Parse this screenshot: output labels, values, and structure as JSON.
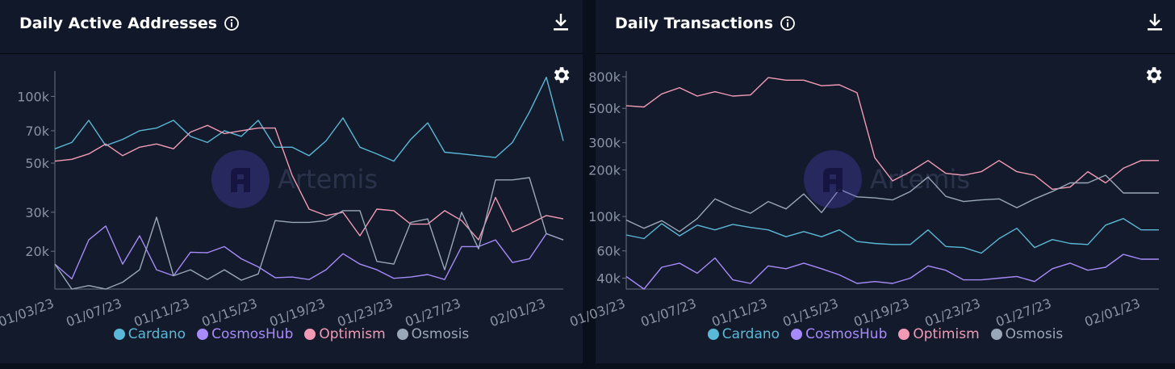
{
  "watermark": "Artemis",
  "colors": {
    "Cardano": "#5bb8d6",
    "CosmosHub": "#a78bfa",
    "Optimism": "#f39bb5",
    "Osmosis": "#9aa7b8"
  },
  "panels": [
    {
      "title": "Daily Active Addresses",
      "icons": [
        "info-icon",
        "download-icon",
        "gear-icon"
      ]
    },
    {
      "title": "Daily Transactions",
      "icons": [
        "info-icon",
        "download-icon",
        "gear-icon"
      ]
    }
  ],
  "chart_data": [
    {
      "type": "line",
      "title": "Daily Active Addresses",
      "y_scale": "log",
      "ylim": [
        13500,
        128000
      ],
      "yticks": [
        20000,
        30000,
        50000,
        70000,
        100000
      ],
      "ytick_labels": [
        "20k",
        "30k",
        "50k",
        "70k",
        "100k"
      ],
      "x_labels": [
        "01/03/23",
        "01/07/23",
        "01/11/23",
        "01/15/23",
        "01/19/23",
        "01/23/23",
        "01/27/23",
        "02/01/23"
      ],
      "x": [
        "01/03/23",
        "01/04/23",
        "01/05/23",
        "01/06/23",
        "01/07/23",
        "01/08/23",
        "01/09/23",
        "01/10/23",
        "01/11/23",
        "01/12/23",
        "01/13/23",
        "01/14/23",
        "01/15/23",
        "01/16/23",
        "01/17/23",
        "01/18/23",
        "01/19/23",
        "01/20/23",
        "01/21/23",
        "01/22/23",
        "01/23/23",
        "01/24/23",
        "01/25/23",
        "01/26/23",
        "01/27/23",
        "01/28/23",
        "01/29/23",
        "01/30/23",
        "01/31/23",
        "02/01/23",
        "02/02/23"
      ],
      "grid": false,
      "legend": "bottom",
      "series": [
        {
          "name": "Cardano",
          "values": [
            58000,
            62000,
            78000,
            60000,
            64000,
            70000,
            72000,
            78000,
            66000,
            62000,
            70000,
            66000,
            78000,
            59000,
            59000,
            54000,
            63000,
            80000,
            59000,
            55000,
            51000,
            64000,
            76000,
            56000,
            55000,
            54000,
            53000,
            62000,
            85000,
            122000,
            63000
          ]
        },
        {
          "name": "CosmosHub",
          "values": [
            17500,
            15000,
            22500,
            26000,
            17500,
            23500,
            16500,
            15500,
            19800,
            19700,
            21000,
            18500,
            17000,
            15200,
            15300,
            14900,
            16500,
            19500,
            17500,
            16500,
            15100,
            15300,
            15700,
            14900,
            21000,
            21000,
            22500,
            17800,
            18500,
            24000,
            22500
          ]
        },
        {
          "name": "Optimism",
          "values": [
            51000,
            52000,
            55000,
            61000,
            54000,
            59000,
            61000,
            58000,
            69000,
            74000,
            68000,
            70000,
            72000,
            72000,
            44000,
            31000,
            29000,
            30000,
            23500,
            31000,
            30500,
            26500,
            26500,
            30500,
            27500,
            22500,
            35000,
            24500,
            26500,
            29000,
            28000
          ]
        },
        {
          "name": "Osmosis",
          "values": [
            17500,
            13500,
            14000,
            13500,
            14500,
            16500,
            28500,
            15500,
            16500,
            14900,
            16500,
            14800,
            15800,
            27500,
            27000,
            27000,
            27500,
            30500,
            30500,
            18000,
            17500,
            27000,
            28000,
            16500,
            30000,
            20500,
            42000,
            42000,
            43000,
            24000,
            22500
          ]
        }
      ]
    },
    {
      "type": "line",
      "title": "Daily Transactions",
      "y_scale": "log",
      "ylim": [
        34000,
        850000
      ],
      "yticks": [
        40000,
        60000,
        100000,
        200000,
        300000,
        500000,
        800000
      ],
      "ytick_labels": [
        "40k",
        "60k",
        "100k",
        "200k",
        "300k",
        "500k",
        "800k"
      ],
      "x_labels": [
        "01/03/23",
        "01/07/23",
        "01/11/23",
        "01/15/23",
        "01/19/23",
        "01/23/23",
        "01/27/23",
        "02/01/23"
      ],
      "x": [
        "01/03/23",
        "01/04/23",
        "01/05/23",
        "01/06/23",
        "01/07/23",
        "01/08/23",
        "01/09/23",
        "01/10/23",
        "01/11/23",
        "01/12/23",
        "01/13/23",
        "01/14/23",
        "01/15/23",
        "01/16/23",
        "01/17/23",
        "01/18/23",
        "01/19/23",
        "01/20/23",
        "01/21/23",
        "01/22/23",
        "01/23/23",
        "01/24/23",
        "01/25/23",
        "01/26/23",
        "01/27/23",
        "01/28/23",
        "01/29/23",
        "01/30/23",
        "01/31/23",
        "02/01/23",
        "02/02/23"
      ],
      "grid": false,
      "legend": "bottom",
      "series": [
        {
          "name": "Cardano",
          "values": [
            76000,
            72000,
            90000,
            75000,
            88000,
            82000,
            89000,
            85000,
            82000,
            74000,
            80000,
            74000,
            82000,
            69000,
            67000,
            66000,
            66000,
            82000,
            64000,
            63000,
            58000,
            72000,
            84000,
            63000,
            71000,
            67000,
            66000,
            88000,
            97000,
            82000,
            82000
          ]
        },
        {
          "name": "CosmosHub",
          "values": [
            41000,
            34000,
            47000,
            50000,
            43000,
            54000,
            39000,
            37000,
            48000,
            46000,
            50000,
            46000,
            42000,
            37000,
            38000,
            37000,
            40000,
            48000,
            45000,
            39000,
            39000,
            40000,
            41000,
            38000,
            46000,
            50000,
            45000,
            47000,
            57000,
            53000,
            53000
          ]
        },
        {
          "name": "Optimism",
          "values": [
            520000,
            510000,
            620000,
            680000,
            600000,
            640000,
            600000,
            610000,
            790000,
            760000,
            760000,
            700000,
            710000,
            630000,
            240000,
            170000,
            195000,
            230000,
            190000,
            185000,
            195000,
            230000,
            195000,
            185000,
            150000,
            155000,
            195000,
            165000,
            205000,
            230000,
            230000
          ]
        },
        {
          "name": "Osmosis",
          "values": [
            95000,
            84000,
            94000,
            80000,
            97000,
            130000,
            115000,
            105000,
            125000,
            112000,
            140000,
            106000,
            150000,
            134000,
            132000,
            128000,
            145000,
            180000,
            135000,
            125000,
            128000,
            130000,
            114000,
            130000,
            145000,
            165000,
            165000,
            185000,
            142000,
            142000,
            142000
          ]
        }
      ]
    }
  ]
}
